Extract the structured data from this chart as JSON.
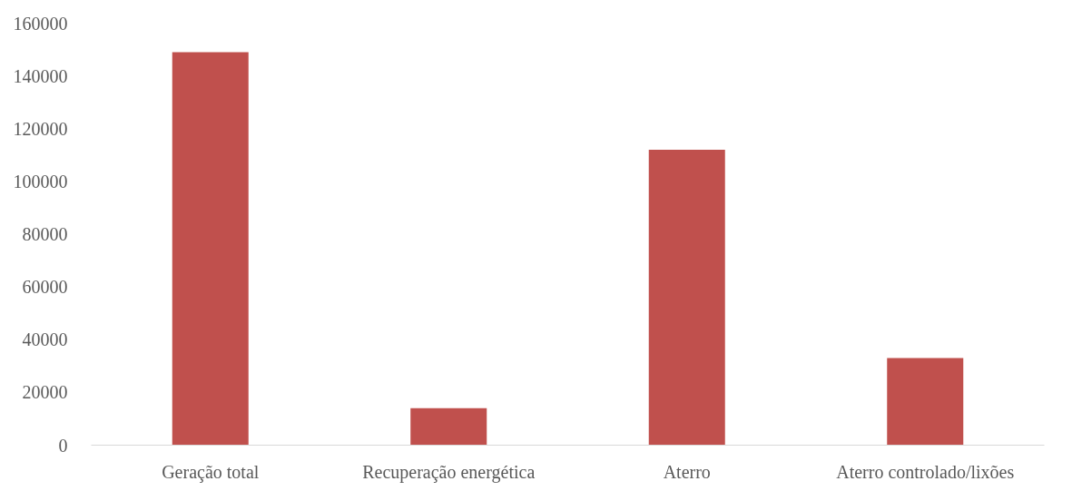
{
  "chart_data": {
    "type": "bar",
    "categories": [
      "Geração total",
      "Recuperação energética",
      "Aterro",
      "Aterro controlado/lixões"
    ],
    "values": [
      149000,
      14000,
      112000,
      33000
    ],
    "color": "#c0504d",
    "ylim": [
      0,
      160000
    ],
    "yticks": [
      0,
      20000,
      40000,
      60000,
      80000,
      100000,
      120000,
      140000,
      160000
    ],
    "grid": false
  }
}
